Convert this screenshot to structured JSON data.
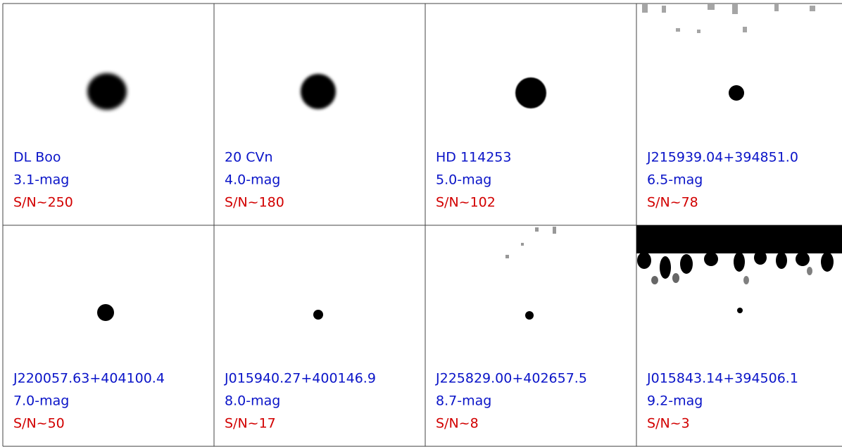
{
  "panels": [
    {
      "name": "DL Boo",
      "magnitude": "3.1-mag",
      "snr": "S/N~250"
    },
    {
      "name": "20 CVn",
      "magnitude": "4.0-mag",
      "snr": "S/N~180"
    },
    {
      "name": "HD 114253",
      "magnitude": "5.0-mag",
      "snr": "S/N~102"
    },
    {
      "name": "J215939.04+394851.0",
      "magnitude": "6.5-mag",
      "snr": "S/N~78"
    },
    {
      "name": "J220057.63+404100.4",
      "magnitude": "7.0-mag",
      "snr": "S/N~50"
    },
    {
      "name": "J015940.27+400146.9",
      "magnitude": "8.0-mag",
      "snr": "S/N~17"
    },
    {
      "name": "J225829.00+402657.5",
      "magnitude": "8.7-mag",
      "snr": "S/N~8"
    },
    {
      "name": "J015843.14+394506.1",
      "magnitude": "9.2-mag",
      "snr": "S/N~3"
    }
  ]
}
